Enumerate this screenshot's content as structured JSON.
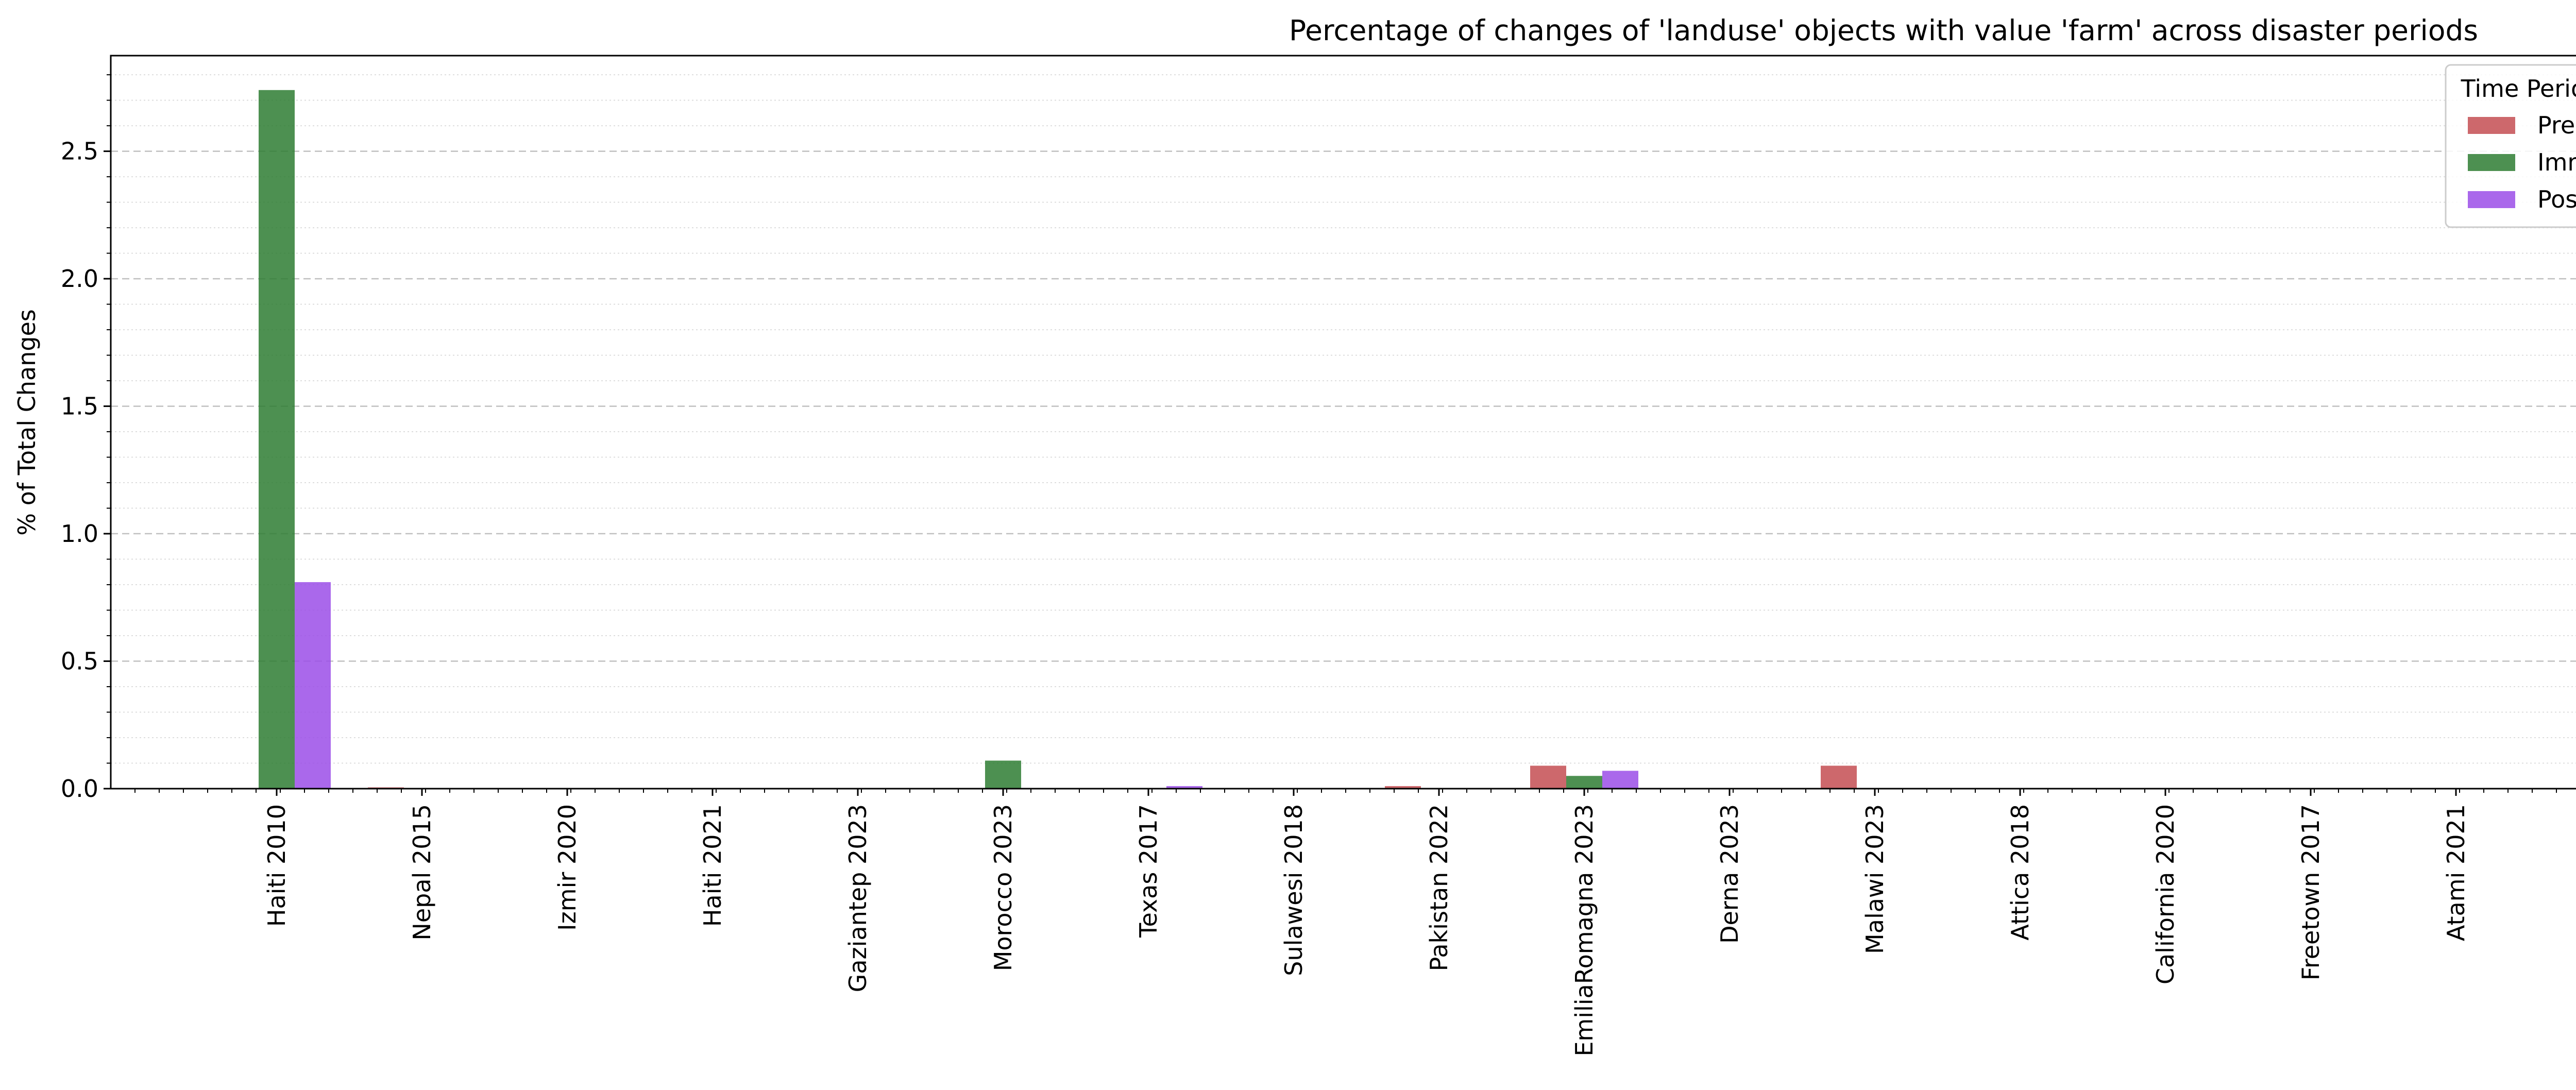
{
  "chart_data": {
    "type": "bar",
    "title": "Percentage of changes of 'landuse' objects with value 'farm' across disaster periods",
    "xlabel": "",
    "ylabel": "% of Total Changes",
    "ylim": [
      0,
      2.875
    ],
    "yticks": [
      "0.0",
      "0.5",
      "1.0",
      "1.5",
      "2.0",
      "2.5"
    ],
    "grid": true,
    "legend": {
      "title": "Time Period",
      "placement": "top-right"
    },
    "categories": [
      "Haiti 2010",
      "Nepal 2015",
      "Izmir 2020",
      "Haiti 2021",
      "Gaziantep 2023",
      "Morocco 2023",
      "Texas 2017",
      "Sulawesi 2018",
      "Pakistan 2022",
      "EmiliaRomagna 2023",
      "Derna 2023",
      "Malawi 2023",
      "Attica 2018",
      "California 2020",
      "Freetown 2017",
      "Atami 2021"
    ],
    "series": [
      {
        "name": "Pre",
        "color": "#c44e52",
        "values": [
          0,
          0.005,
          0,
          0,
          0,
          0,
          0,
          0,
          0.01,
          0.09,
          0,
          0.09,
          0,
          0,
          0,
          0
        ]
      },
      {
        "name": "Imm",
        "color": "#2e7d32",
        "values": [
          2.74,
          0,
          0,
          0,
          0.003,
          0.11,
          0,
          0,
          0.003,
          0.05,
          0,
          0,
          0,
          0,
          0,
          0
        ]
      },
      {
        "name": "Post",
        "color": "#9b4de8",
        "values": [
          0.81,
          0,
          0,
          0,
          0,
          0,
          0.01,
          0,
          0,
          0.07,
          0,
          0,
          0,
          0,
          0,
          0
        ]
      }
    ]
  }
}
